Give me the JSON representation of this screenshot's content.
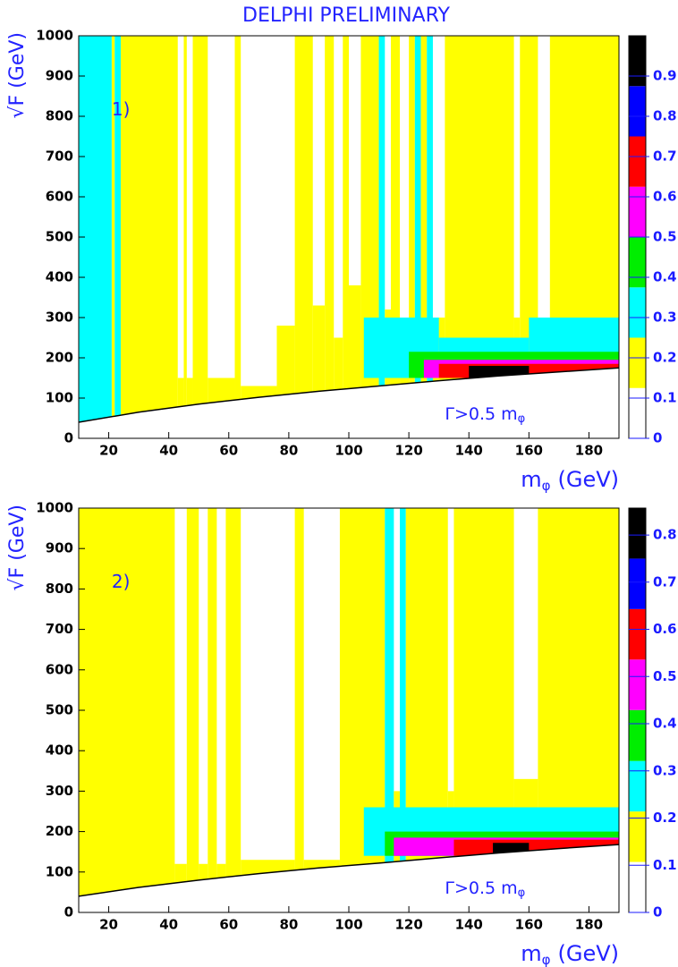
{
  "title": "DELPHI PRELIMINARY",
  "chart_data": [
    {
      "type": "heatmap",
      "panel_label": "1)",
      "x_label": {
        "main": "m",
        "sub": "φ",
        "unit": "(GeV)"
      },
      "y_label": "√F (GeV)",
      "annotation": {
        "main": "Γ>0.5 m",
        "sub": "φ"
      },
      "xlim": [
        10,
        190
      ],
      "ylim": [
        0,
        1000
      ],
      "xticks": [
        20,
        40,
        60,
        80,
        100,
        120,
        140,
        160,
        180
      ],
      "yticks": [
        0,
        100,
        200,
        300,
        400,
        500,
        600,
        700,
        800,
        900,
        1000
      ],
      "zlim": [
        0,
        1.0
      ],
      "zticks": [
        0,
        0.1,
        0.2,
        0.3,
        0.4,
        0.5,
        0.6,
        0.7,
        0.8,
        0.9
      ],
      "zlevels": [
        0,
        0.125,
        0.25,
        0.375,
        0.5,
        0.625,
        0.75,
        0.875,
        1.0
      ],
      "level_colors": [
        "#ffffff",
        "#ffff00",
        "#00ffff",
        "#00ee00",
        "#ff00ff",
        "#ff0000",
        "#0000ff",
        "#000000"
      ],
      "boundary": {
        "x": [
          10,
          30,
          50,
          70,
          90,
          110,
          130,
          150,
          170,
          190
        ],
        "y": [
          40,
          65,
          85,
          102,
          117,
          130,
          143,
          155,
          165,
          175
        ]
      },
      "regions": [
        [
          10,
          21,
          0,
          1000,
          0.3
        ],
        [
          21,
          22,
          0,
          1000,
          0.15
        ],
        [
          22,
          24,
          0,
          1000,
          0.3
        ],
        [
          24,
          43,
          0,
          1000,
          0.15
        ],
        [
          43,
          45,
          0,
          150,
          0.15
        ],
        [
          45,
          46,
          0,
          1000,
          0.15
        ],
        [
          46,
          48,
          0,
          150,
          0.15
        ],
        [
          48,
          53,
          0,
          1000,
          0.15
        ],
        [
          53,
          62,
          0,
          150,
          0.15
        ],
        [
          62,
          64,
          0,
          1000,
          0.15
        ],
        [
          64,
          76,
          0,
          130,
          0.15
        ],
        [
          76,
          82,
          0,
          280,
          0.15
        ],
        [
          82,
          88,
          0,
          1000,
          0.15
        ],
        [
          88,
          92,
          0,
          330,
          0.15
        ],
        [
          92,
          95,
          0,
          1000,
          0.15
        ],
        [
          95,
          98,
          0,
          250,
          0.15
        ],
        [
          98,
          100,
          0,
          1000,
          0.15
        ],
        [
          100,
          104,
          0,
          380,
          0.15
        ],
        [
          104,
          110,
          0,
          1000,
          0.15
        ],
        [
          110,
          112,
          0,
          1000,
          0.3
        ],
        [
          112,
          114,
          0,
          320,
          0.15
        ],
        [
          114,
          117,
          0,
          1000,
          0.15
        ],
        [
          117,
          120,
          0,
          300,
          0.15
        ],
        [
          120,
          122,
          0,
          1000,
          0.15
        ],
        [
          122,
          124,
          0,
          1000,
          0.3
        ],
        [
          124,
          126,
          0,
          1000,
          0.15
        ],
        [
          126,
          128,
          0,
          1000,
          0.3
        ],
        [
          128,
          132,
          0,
          300,
          0.15
        ],
        [
          132,
          155,
          0,
          1000,
          0.15
        ],
        [
          155,
          157,
          0,
          300,
          0.15
        ],
        [
          157,
          163,
          0,
          1000,
          0.15
        ],
        [
          163,
          167,
          0,
          300,
          0.15
        ],
        [
          167,
          190,
          0,
          1000,
          0.15
        ],
        [
          105,
          130,
          150,
          300,
          0.3
        ],
        [
          130,
          160,
          150,
          250,
          0.3
        ],
        [
          160,
          190,
          150,
          300,
          0.3
        ],
        [
          120,
          190,
          150,
          215,
          0.45
        ],
        [
          125,
          190,
          150,
          195,
          0.55
        ],
        [
          130,
          190,
          150,
          185,
          0.7
        ],
        [
          140,
          160,
          150,
          180,
          0.95
        ]
      ]
    },
    {
      "type": "heatmap",
      "panel_label": "2)",
      "x_label": {
        "main": "m",
        "sub": "φ",
        "unit": "(GeV)"
      },
      "y_label": "√F (GeV)",
      "annotation": {
        "main": "Γ>0.5 m",
        "sub": "φ"
      },
      "xlim": [
        10,
        190
      ],
      "ylim": [
        0,
        1000
      ],
      "xticks": [
        20,
        40,
        60,
        80,
        100,
        120,
        140,
        160,
        180
      ],
      "yticks": [
        0,
        100,
        200,
        300,
        400,
        500,
        600,
        700,
        800,
        900,
        1000
      ],
      "zlim": [
        0,
        0.857
      ],
      "zticks": [
        0,
        0.1,
        0.2,
        0.3,
        0.4,
        0.5,
        0.6,
        0.7,
        0.8
      ],
      "zlevels": [
        0,
        0.107,
        0.214,
        0.321,
        0.429,
        0.536,
        0.643,
        0.75,
        0.857
      ],
      "level_colors": [
        "#ffffff",
        "#ffff00",
        "#00ffff",
        "#00ee00",
        "#ff00ff",
        "#ff0000",
        "#0000ff",
        "#000000"
      ],
      "boundary": {
        "x": [
          10,
          30,
          50,
          70,
          90,
          110,
          130,
          150,
          170,
          190
        ],
        "y": [
          40,
          62,
          80,
          96,
          110,
          122,
          135,
          147,
          158,
          168
        ]
      },
      "regions": [
        [
          10,
          42,
          0,
          1000,
          0.15
        ],
        [
          42,
          46,
          0,
          120,
          0.15
        ],
        [
          46,
          50,
          0,
          1000,
          0.15
        ],
        [
          50,
          53,
          0,
          120,
          0.15
        ],
        [
          53,
          56,
          0,
          1000,
          0.15
        ],
        [
          56,
          59,
          0,
          120,
          0.15
        ],
        [
          59,
          64,
          0,
          1000,
          0.15
        ],
        [
          64,
          82,
          0,
          130,
          0.15
        ],
        [
          82,
          85,
          0,
          1000,
          0.15
        ],
        [
          85,
          97,
          0,
          130,
          0.15
        ],
        [
          97,
          112,
          0,
          1000,
          0.15
        ],
        [
          112,
          115,
          0,
          1000,
          0.25
        ],
        [
          115,
          117,
          0,
          300,
          0.15
        ],
        [
          117,
          119,
          0,
          1000,
          0.25
        ],
        [
          119,
          133,
          0,
          1000,
          0.15
        ],
        [
          133,
          135,
          0,
          300,
          0.15
        ],
        [
          135,
          155,
          0,
          1000,
          0.15
        ],
        [
          155,
          163,
          0,
          330,
          0.15
        ],
        [
          163,
          190,
          0,
          1000,
          0.15
        ],
        [
          105,
          190,
          140,
          260,
          0.25
        ],
        [
          112,
          190,
          140,
          200,
          0.35
        ],
        [
          115,
          190,
          140,
          185,
          0.45
        ],
        [
          135,
          190,
          140,
          180,
          0.6
        ],
        [
          148,
          160,
          140,
          172,
          0.8
        ]
      ]
    }
  ]
}
